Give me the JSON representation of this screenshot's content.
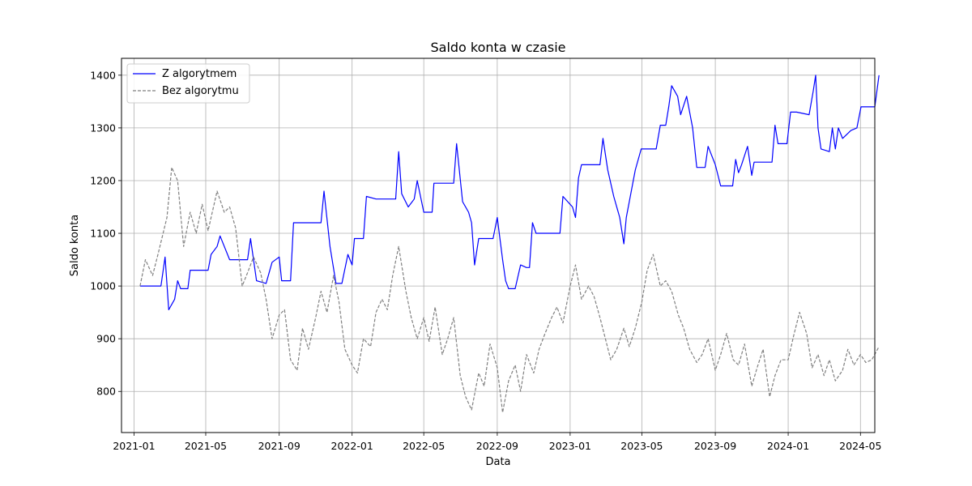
{
  "chart_data": {
    "type": "line",
    "title": "Saldo konta w czasie",
    "xlabel": "Data",
    "ylabel": "Saldo konta",
    "xlim": [
      "2020-12-11",
      "2024-05-25"
    ],
    "ylim": [
      722,
      1432
    ],
    "x_ticks": [
      "2021-01",
      "2021-05",
      "2021-09",
      "2022-01",
      "2022-05",
      "2022-09",
      "2023-01",
      "2023-05",
      "2023-09",
      "2024-01",
      "2024-05"
    ],
    "y_ticks": [
      800,
      900,
      1000,
      1100,
      1200,
      1300,
      1400
    ],
    "grid": true,
    "legend_position": "top-left",
    "series": [
      {
        "name": "Z algorytmem",
        "color": "#0000ff",
        "style": "solid",
        "points": [
          [
            "2021-01-11",
            1000
          ],
          [
            "2021-02-15",
            1000
          ],
          [
            "2021-02-22",
            1055
          ],
          [
            "2021-02-28",
            955
          ],
          [
            "2021-03-10",
            975
          ],
          [
            "2021-03-15",
            1010
          ],
          [
            "2021-03-20",
            995
          ],
          [
            "2021-04-01",
            995
          ],
          [
            "2021-04-05",
            1030
          ],
          [
            "2021-05-05",
            1030
          ],
          [
            "2021-05-10",
            1060
          ],
          [
            "2021-05-20",
            1075
          ],
          [
            "2021-05-25",
            1095
          ],
          [
            "2021-06-10",
            1050
          ],
          [
            "2021-06-15",
            1050
          ],
          [
            "2021-07-10",
            1050
          ],
          [
            "2021-07-15",
            1090
          ],
          [
            "2021-07-25",
            1010
          ],
          [
            "2021-08-10",
            1005
          ],
          [
            "2021-08-20",
            1045
          ],
          [
            "2021-09-01",
            1055
          ],
          [
            "2021-09-05",
            1010
          ],
          [
            "2021-09-20",
            1010
          ],
          [
            "2021-09-25",
            1120
          ],
          [
            "2021-11-10",
            1120
          ],
          [
            "2021-11-15",
            1180
          ],
          [
            "2021-11-25",
            1075
          ],
          [
            "2021-12-05",
            1005
          ],
          [
            "2021-12-15",
            1005
          ],
          [
            "2021-12-25",
            1060
          ],
          [
            "2022-01-01",
            1040
          ],
          [
            "2022-01-05",
            1090
          ],
          [
            "2022-01-20",
            1090
          ],
          [
            "2022-01-25",
            1170
          ],
          [
            "2022-02-10",
            1165
          ],
          [
            "2022-03-15",
            1165
          ],
          [
            "2022-03-20",
            1255
          ],
          [
            "2022-03-25",
            1175
          ],
          [
            "2022-04-05",
            1150
          ],
          [
            "2022-04-15",
            1165
          ],
          [
            "2022-04-20",
            1200
          ],
          [
            "2022-05-01",
            1140
          ],
          [
            "2022-05-15",
            1140
          ],
          [
            "2022-05-18",
            1195
          ],
          [
            "2022-06-20",
            1195
          ],
          [
            "2022-06-25",
            1270
          ],
          [
            "2022-07-05",
            1160
          ],
          [
            "2022-07-15",
            1140
          ],
          [
            "2022-07-20",
            1120
          ],
          [
            "2022-07-25",
            1040
          ],
          [
            "2022-08-01",
            1090
          ],
          [
            "2022-08-25",
            1090
          ],
          [
            "2022-09-01",
            1130
          ],
          [
            "2022-09-10",
            1050
          ],
          [
            "2022-09-15",
            1010
          ],
          [
            "2022-09-20",
            995
          ],
          [
            "2022-10-01",
            995
          ],
          [
            "2022-10-10",
            1040
          ],
          [
            "2022-10-20",
            1035
          ],
          [
            "2022-10-25",
            1035
          ],
          [
            "2022-10-30",
            1120
          ],
          [
            "2022-11-05",
            1100
          ],
          [
            "2022-12-15",
            1100
          ],
          [
            "2022-12-20",
            1170
          ],
          [
            "2023-01-05",
            1150
          ],
          [
            "2023-01-10",
            1130
          ],
          [
            "2023-01-15",
            1205
          ],
          [
            "2023-01-20",
            1230
          ],
          [
            "2023-02-20",
            1230
          ],
          [
            "2023-02-25",
            1280
          ],
          [
            "2023-03-05",
            1220
          ],
          [
            "2023-03-15",
            1170
          ],
          [
            "2023-03-25",
            1130
          ],
          [
            "2023-04-01",
            1080
          ],
          [
            "2023-04-05",
            1130
          ],
          [
            "2023-04-10",
            1160
          ],
          [
            "2023-04-20",
            1220
          ],
          [
            "2023-04-30",
            1260
          ],
          [
            "2023-05-25",
            1260
          ],
          [
            "2023-06-01",
            1305
          ],
          [
            "2023-06-10",
            1305
          ],
          [
            "2023-06-15",
            1340
          ],
          [
            "2023-06-20",
            1380
          ],
          [
            "2023-06-30",
            1360
          ],
          [
            "2023-07-05",
            1325
          ],
          [
            "2023-07-15",
            1360
          ],
          [
            "2023-07-25",
            1300
          ],
          [
            "2023-08-01",
            1225
          ],
          [
            "2023-08-15",
            1225
          ],
          [
            "2023-08-20",
            1265
          ],
          [
            "2023-09-01",
            1230
          ],
          [
            "2023-09-10",
            1190
          ],
          [
            "2023-09-30",
            1190
          ],
          [
            "2023-10-05",
            1240
          ],
          [
            "2023-10-10",
            1215
          ],
          [
            "2023-10-15",
            1230
          ],
          [
            "2023-10-25",
            1265
          ],
          [
            "2023-11-01",
            1210
          ],
          [
            "2023-11-05",
            1235
          ],
          [
            "2023-12-05",
            1235
          ],
          [
            "2023-12-10",
            1305
          ],
          [
            "2023-12-15",
            1270
          ],
          [
            "2023-12-30",
            1270
          ],
          [
            "2024-01-05",
            1330
          ],
          [
            "2024-01-15",
            1330
          ],
          [
            "2024-02-05",
            1325
          ],
          [
            "2024-02-12",
            1370
          ],
          [
            "2024-02-16",
            1400
          ],
          [
            "2024-02-20",
            1300
          ],
          [
            "2024-02-25",
            1260
          ],
          [
            "2024-03-10",
            1255
          ],
          [
            "2024-03-15",
            1300
          ],
          [
            "2024-03-20",
            1260
          ],
          [
            "2024-03-25",
            1300
          ],
          [
            "2024-04-01",
            1280
          ],
          [
            "2024-04-15",
            1295
          ],
          [
            "2024-04-25",
            1300
          ],
          [
            "2024-05-02",
            1340
          ],
          [
            "2024-05-25",
            1340
          ],
          [
            "2024-06-01",
            1400
          ]
        ]
      },
      {
        "name": "Bez algorytmu",
        "color": "#808080",
        "style": "dashed",
        "points": [
          [
            "2021-01-11",
            1000
          ],
          [
            "2021-01-20",
            1050
          ],
          [
            "2021-02-01",
            1020
          ],
          [
            "2021-02-10",
            1060
          ],
          [
            "2021-02-25",
            1130
          ],
          [
            "2021-03-05",
            1225
          ],
          [
            "2021-03-15",
            1200
          ],
          [
            "2021-03-25",
            1075
          ],
          [
            "2021-04-05",
            1140
          ],
          [
            "2021-04-15",
            1100
          ],
          [
            "2021-04-25",
            1155
          ],
          [
            "2021-05-05",
            1105
          ],
          [
            "2021-05-20",
            1180
          ],
          [
            "2021-06-01",
            1140
          ],
          [
            "2021-06-10",
            1150
          ],
          [
            "2021-06-20",
            1110
          ],
          [
            "2021-07-01",
            1000
          ],
          [
            "2021-07-10",
            1025
          ],
          [
            "2021-07-20",
            1055
          ],
          [
            "2021-08-01",
            1025
          ],
          [
            "2021-08-10",
            975
          ],
          [
            "2021-08-20",
            900
          ],
          [
            "2021-09-01",
            945
          ],
          [
            "2021-09-10",
            955
          ],
          [
            "2021-09-20",
            860
          ],
          [
            "2021-10-01",
            840
          ],
          [
            "2021-10-10",
            920
          ],
          [
            "2021-10-20",
            880
          ],
          [
            "2021-11-01",
            940
          ],
          [
            "2021-11-10",
            990
          ],
          [
            "2021-11-20",
            950
          ],
          [
            "2021-12-01",
            1020
          ],
          [
            "2021-12-10",
            970
          ],
          [
            "2021-12-20",
            880
          ],
          [
            "2022-01-01",
            850
          ],
          [
            "2022-01-10",
            835
          ],
          [
            "2022-01-20",
            900
          ],
          [
            "2022-02-01",
            885
          ],
          [
            "2022-02-10",
            950
          ],
          [
            "2022-02-20",
            975
          ],
          [
            "2022-03-01",
            955
          ],
          [
            "2022-03-10",
            1020
          ],
          [
            "2022-03-20",
            1075
          ],
          [
            "2022-04-01",
            990
          ],
          [
            "2022-04-10",
            940
          ],
          [
            "2022-04-20",
            900
          ],
          [
            "2022-05-01",
            940
          ],
          [
            "2022-05-10",
            895
          ],
          [
            "2022-05-20",
            960
          ],
          [
            "2022-06-01",
            870
          ],
          [
            "2022-06-10",
            900
          ],
          [
            "2022-06-20",
            940
          ],
          [
            "2022-07-01",
            830
          ],
          [
            "2022-07-10",
            790
          ],
          [
            "2022-07-20",
            765
          ],
          [
            "2022-08-01",
            835
          ],
          [
            "2022-08-10",
            810
          ],
          [
            "2022-08-20",
            890
          ],
          [
            "2022-09-01",
            845
          ],
          [
            "2022-09-10",
            760
          ],
          [
            "2022-09-20",
            820
          ],
          [
            "2022-10-01",
            850
          ],
          [
            "2022-10-10",
            800
          ],
          [
            "2022-10-20",
            870
          ],
          [
            "2022-11-01",
            835
          ],
          [
            "2022-11-10",
            880
          ],
          [
            "2022-11-20",
            910
          ],
          [
            "2022-12-01",
            940
          ],
          [
            "2022-12-10",
            960
          ],
          [
            "2022-12-20",
            930
          ],
          [
            "2023-01-01",
            1000
          ],
          [
            "2023-01-10",
            1040
          ],
          [
            "2023-01-20",
            975
          ],
          [
            "2023-02-01",
            1000
          ],
          [
            "2023-02-10",
            980
          ],
          [
            "2023-02-20",
            940
          ],
          [
            "2023-03-01",
            900
          ],
          [
            "2023-03-10",
            860
          ],
          [
            "2023-03-20",
            880
          ],
          [
            "2023-04-01",
            920
          ],
          [
            "2023-04-10",
            885
          ],
          [
            "2023-04-20",
            920
          ],
          [
            "2023-05-01",
            970
          ],
          [
            "2023-05-10",
            1030
          ],
          [
            "2023-05-20",
            1060
          ],
          [
            "2023-06-01",
            1000
          ],
          [
            "2023-06-10",
            1010
          ],
          [
            "2023-06-20",
            990
          ],
          [
            "2023-07-01",
            945
          ],
          [
            "2023-07-10",
            920
          ],
          [
            "2023-07-20",
            880
          ],
          [
            "2023-08-01",
            855
          ],
          [
            "2023-08-10",
            870
          ],
          [
            "2023-08-20",
            900
          ],
          [
            "2023-09-01",
            840
          ],
          [
            "2023-09-10",
            870
          ],
          [
            "2023-09-20",
            910
          ],
          [
            "2023-10-01",
            860
          ],
          [
            "2023-10-10",
            850
          ],
          [
            "2023-10-20",
            890
          ],
          [
            "2023-11-01",
            810
          ],
          [
            "2023-11-10",
            845
          ],
          [
            "2023-11-20",
            880
          ],
          [
            "2023-12-01",
            790
          ],
          [
            "2023-12-10",
            830
          ],
          [
            "2023-12-20",
            860
          ],
          [
            "2024-01-01",
            860
          ],
          [
            "2024-01-10",
            905
          ],
          [
            "2024-01-20",
            950
          ],
          [
            "2024-02-01",
            910
          ],
          [
            "2024-02-10",
            845
          ],
          [
            "2024-02-20",
            870
          ],
          [
            "2024-03-01",
            830
          ],
          [
            "2024-03-10",
            860
          ],
          [
            "2024-03-20",
            820
          ],
          [
            "2024-04-01",
            840
          ],
          [
            "2024-04-10",
            880
          ],
          [
            "2024-04-20",
            850
          ],
          [
            "2024-05-01",
            870
          ],
          [
            "2024-05-10",
            855
          ],
          [
            "2024-05-20",
            860
          ],
          [
            "2024-06-01",
            885
          ]
        ]
      }
    ]
  }
}
